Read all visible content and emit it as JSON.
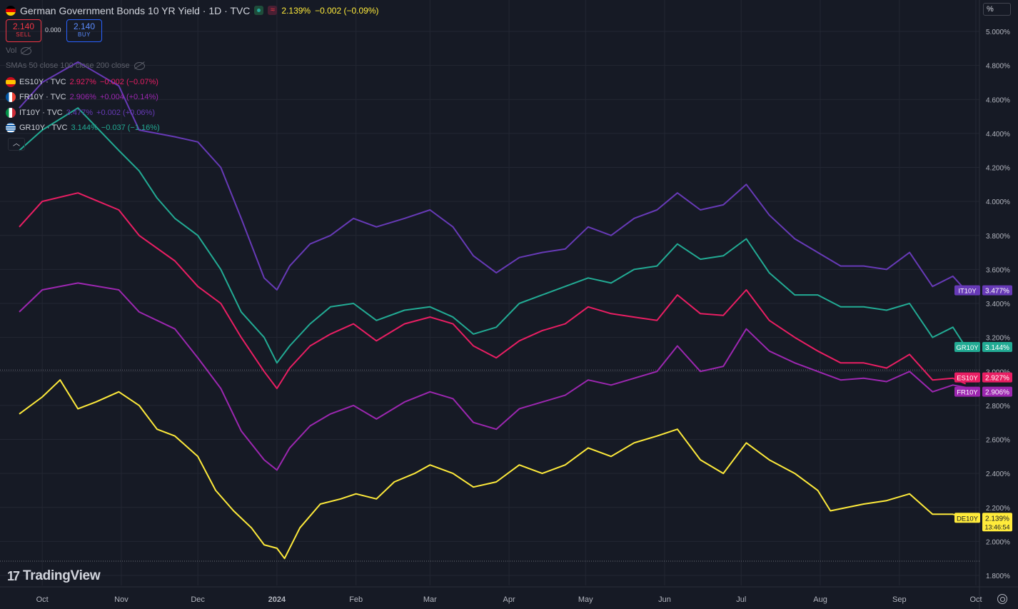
{
  "header": {
    "title": "German Government Bonds 10 YR Yield · 1D · TVC",
    "last": "2.139%",
    "change": "−0.002 (−0.09%)",
    "unit_label": "%",
    "sell_price": "2.140",
    "sell_label": "SELL",
    "spread": "0.000",
    "buy_price": "2.140",
    "buy_label": "BUY",
    "vol_label": "Vol",
    "sma_label": "SMAs 50 close 100 close 200 close",
    "collapse_icon": "chevron-up-icon"
  },
  "compare": [
    {
      "symbol": "ES10Y · TVC",
      "price": "2.927%",
      "change": "−0.002 (−0.07%)",
      "color": "#e91e63",
      "flag": "spain-flag-icon"
    },
    {
      "symbol": "FR10Y · TVC",
      "price": "2.906%",
      "change": "+0.004 (+0.14%)",
      "color": "#9c27b0",
      "flag": "france-flag-icon"
    },
    {
      "symbol": "IT10Y · TVC",
      "price": "3.477%",
      "change": "+0.002 (+0.06%)",
      "color": "#673ab7",
      "flag": "italy-flag-icon"
    },
    {
      "symbol": "GR10Y · TVC",
      "price": "3.144%",
      "change": "−0.037 (−1.16%)",
      "color": "#22ab94",
      "flag": "greece-flag-icon"
    }
  ],
  "brand": "TradingView",
  "chart_data": {
    "type": "line",
    "y_axis_ticks": [
      "5.000%",
      "4.800%",
      "4.600%",
      "4.400%",
      "4.200%",
      "4.000%",
      "3.800%",
      "3.600%",
      "3.400%",
      "3.200%",
      "3.000%",
      "2.800%",
      "2.600%",
      "2.400%",
      "2.200%",
      "2.000%",
      "1.800%"
    ],
    "y_tick_values": [
      5.0,
      4.8,
      4.6,
      4.4,
      4.2,
      4.0,
      3.8,
      3.6,
      3.4,
      3.2,
      3.0,
      2.8,
      2.6,
      2.4,
      2.2,
      2.0,
      1.8
    ],
    "ylim": [
      1.8,
      5.0
    ],
    "x_axis_ticks": [
      "Oct",
      "Nov",
      "Dec",
      "2024",
      "Feb",
      "Mar",
      "Apr",
      "May",
      "Jun",
      "Jul",
      "Aug",
      "Sep",
      "Oct"
    ],
    "x_tick_dates": [
      "2023-10-01",
      "2023-11-01",
      "2023-12-01",
      "2024-01-01",
      "2024-02-01",
      "2024-03-01",
      "2024-04-01",
      "2024-05-01",
      "2024-06-01",
      "2024-07-01",
      "2024-08-01",
      "2024-09-01",
      "2024-10-01"
    ],
    "x_range": [
      "2023-09-22",
      "2024-10-01"
    ],
    "grid": true,
    "previous_close": "3.0",
    "series": [
      {
        "name": "IT10Y",
        "color": "#673ab7",
        "last_label": "IT10Y",
        "last_value": "3.477%",
        "points": [
          [
            "2023-09-22",
            4.55
          ],
          [
            "2023-10-01",
            4.7
          ],
          [
            "2023-10-15",
            4.82
          ],
          [
            "2023-10-31",
            4.68
          ],
          [
            "2023-11-08",
            4.42
          ],
          [
            "2023-11-22",
            4.38
          ],
          [
            "2023-12-01",
            4.35
          ],
          [
            "2023-12-10",
            4.2
          ],
          [
            "2023-12-18",
            3.9
          ],
          [
            "2023-12-27",
            3.55
          ],
          [
            "2024-01-01",
            3.48
          ],
          [
            "2024-01-06",
            3.62
          ],
          [
            "2024-01-14",
            3.75
          ],
          [
            "2024-01-22",
            3.8
          ],
          [
            "2024-01-31",
            3.9
          ],
          [
            "2024-02-09",
            3.85
          ],
          [
            "2024-02-20",
            3.9
          ],
          [
            "2024-03-01",
            3.95
          ],
          [
            "2024-03-10",
            3.85
          ],
          [
            "2024-03-18",
            3.68
          ],
          [
            "2024-03-27",
            3.58
          ],
          [
            "2024-04-05",
            3.67
          ],
          [
            "2024-04-14",
            3.7
          ],
          [
            "2024-04-23",
            3.72
          ],
          [
            "2024-05-02",
            3.85
          ],
          [
            "2024-05-11",
            3.8
          ],
          [
            "2024-05-20",
            3.9
          ],
          [
            "2024-05-29",
            3.95
          ],
          [
            "2024-06-06",
            4.05
          ],
          [
            "2024-06-15",
            3.95
          ],
          [
            "2024-06-24",
            3.98
          ],
          [
            "2024-07-03",
            4.1
          ],
          [
            "2024-07-12",
            3.92
          ],
          [
            "2024-07-22",
            3.78
          ],
          [
            "2024-07-31",
            3.7
          ],
          [
            "2024-08-09",
            3.62
          ],
          [
            "2024-08-18",
            3.62
          ],
          [
            "2024-08-27",
            3.6
          ],
          [
            "2024-09-05",
            3.7
          ],
          [
            "2024-09-14",
            3.5
          ],
          [
            "2024-09-22",
            3.56
          ],
          [
            "2024-09-27",
            3.477
          ]
        ]
      },
      {
        "name": "GR10Y",
        "color": "#22ab94",
        "last_label": "GR10Y",
        "last_value": "3.144%",
        "points": [
          [
            "2023-09-22",
            4.3
          ],
          [
            "2023-10-01",
            4.42
          ],
          [
            "2023-10-15",
            4.55
          ],
          [
            "2023-10-31",
            4.3
          ],
          [
            "2023-11-08",
            4.18
          ],
          [
            "2023-11-15",
            4.02
          ],
          [
            "2023-11-22",
            3.9
          ],
          [
            "2023-12-01",
            3.8
          ],
          [
            "2023-12-10",
            3.6
          ],
          [
            "2023-12-18",
            3.35
          ],
          [
            "2023-12-27",
            3.2
          ],
          [
            "2024-01-01",
            3.05
          ],
          [
            "2024-01-06",
            3.15
          ],
          [
            "2024-01-14",
            3.28
          ],
          [
            "2024-01-22",
            3.38
          ],
          [
            "2024-01-31",
            3.4
          ],
          [
            "2024-02-09",
            3.3
          ],
          [
            "2024-02-20",
            3.36
          ],
          [
            "2024-03-01",
            3.38
          ],
          [
            "2024-03-10",
            3.32
          ],
          [
            "2024-03-18",
            3.22
          ],
          [
            "2024-03-27",
            3.26
          ],
          [
            "2024-04-05",
            3.4
          ],
          [
            "2024-04-14",
            3.45
          ],
          [
            "2024-04-23",
            3.5
          ],
          [
            "2024-05-02",
            3.55
          ],
          [
            "2024-05-11",
            3.52
          ],
          [
            "2024-05-20",
            3.6
          ],
          [
            "2024-05-29",
            3.62
          ],
          [
            "2024-06-06",
            3.75
          ],
          [
            "2024-06-15",
            3.66
          ],
          [
            "2024-06-24",
            3.68
          ],
          [
            "2024-07-03",
            3.78
          ],
          [
            "2024-07-12",
            3.58
          ],
          [
            "2024-07-22",
            3.45
          ],
          [
            "2024-07-31",
            3.45
          ],
          [
            "2024-08-09",
            3.38
          ],
          [
            "2024-08-18",
            3.38
          ],
          [
            "2024-08-27",
            3.36
          ],
          [
            "2024-09-05",
            3.4
          ],
          [
            "2024-09-14",
            3.2
          ],
          [
            "2024-09-22",
            3.26
          ],
          [
            "2024-09-27",
            3.144
          ]
        ]
      },
      {
        "name": "ES10Y",
        "color": "#e91e63",
        "last_label": "ES10Y",
        "last_value": "2.927%",
        "points": [
          [
            "2023-09-22",
            3.85
          ],
          [
            "2023-10-01",
            4.0
          ],
          [
            "2023-10-15",
            4.05
          ],
          [
            "2023-10-31",
            3.95
          ],
          [
            "2023-11-08",
            3.8
          ],
          [
            "2023-11-22",
            3.65
          ],
          [
            "2023-12-01",
            3.5
          ],
          [
            "2023-12-10",
            3.4
          ],
          [
            "2023-12-18",
            3.2
          ],
          [
            "2023-12-27",
            3.0
          ],
          [
            "2024-01-01",
            2.9
          ],
          [
            "2024-01-06",
            3.02
          ],
          [
            "2024-01-14",
            3.15
          ],
          [
            "2024-01-22",
            3.22
          ],
          [
            "2024-01-31",
            3.28
          ],
          [
            "2024-02-09",
            3.18
          ],
          [
            "2024-02-20",
            3.28
          ],
          [
            "2024-03-01",
            3.32
          ],
          [
            "2024-03-10",
            3.28
          ],
          [
            "2024-03-18",
            3.15
          ],
          [
            "2024-03-27",
            3.08
          ],
          [
            "2024-04-05",
            3.18
          ],
          [
            "2024-04-14",
            3.24
          ],
          [
            "2024-04-23",
            3.28
          ],
          [
            "2024-05-02",
            3.38
          ],
          [
            "2024-05-11",
            3.34
          ],
          [
            "2024-05-20",
            3.32
          ],
          [
            "2024-05-29",
            3.3
          ],
          [
            "2024-06-06",
            3.45
          ],
          [
            "2024-06-15",
            3.34
          ],
          [
            "2024-06-24",
            3.33
          ],
          [
            "2024-07-03",
            3.48
          ],
          [
            "2024-07-12",
            3.3
          ],
          [
            "2024-07-22",
            3.2
          ],
          [
            "2024-07-31",
            3.12
          ],
          [
            "2024-08-09",
            3.05
          ],
          [
            "2024-08-18",
            3.05
          ],
          [
            "2024-08-27",
            3.02
          ],
          [
            "2024-09-05",
            3.1
          ],
          [
            "2024-09-14",
            2.95
          ],
          [
            "2024-09-22",
            2.96
          ],
          [
            "2024-09-27",
            2.927
          ]
        ]
      },
      {
        "name": "FR10Y",
        "color": "#9c27b0",
        "last_label": "FR10Y",
        "last_value": "2.906%",
        "points": [
          [
            "2023-09-22",
            3.35
          ],
          [
            "2023-10-01",
            3.48
          ],
          [
            "2023-10-15",
            3.52
          ],
          [
            "2023-10-31",
            3.48
          ],
          [
            "2023-11-08",
            3.35
          ],
          [
            "2023-11-22",
            3.25
          ],
          [
            "2023-12-01",
            3.08
          ],
          [
            "2023-12-10",
            2.9
          ],
          [
            "2023-12-18",
            2.65
          ],
          [
            "2023-12-27",
            2.48
          ],
          [
            "2024-01-01",
            2.42
          ],
          [
            "2024-01-06",
            2.55
          ],
          [
            "2024-01-14",
            2.68
          ],
          [
            "2024-01-22",
            2.75
          ],
          [
            "2024-01-31",
            2.8
          ],
          [
            "2024-02-09",
            2.72
          ],
          [
            "2024-02-20",
            2.82
          ],
          [
            "2024-03-01",
            2.88
          ],
          [
            "2024-03-10",
            2.84
          ],
          [
            "2024-03-18",
            2.7
          ],
          [
            "2024-03-27",
            2.66
          ],
          [
            "2024-04-05",
            2.78
          ],
          [
            "2024-04-14",
            2.82
          ],
          [
            "2024-04-23",
            2.86
          ],
          [
            "2024-05-02",
            2.95
          ],
          [
            "2024-05-11",
            2.92
          ],
          [
            "2024-05-20",
            2.96
          ],
          [
            "2024-05-29",
            3.0
          ],
          [
            "2024-06-06",
            3.15
          ],
          [
            "2024-06-15",
            3.0
          ],
          [
            "2024-06-24",
            3.03
          ],
          [
            "2024-07-03",
            3.25
          ],
          [
            "2024-07-12",
            3.12
          ],
          [
            "2024-07-22",
            3.05
          ],
          [
            "2024-07-31",
            3.0
          ],
          [
            "2024-08-09",
            2.95
          ],
          [
            "2024-08-18",
            2.96
          ],
          [
            "2024-08-27",
            2.94
          ],
          [
            "2024-09-05",
            3.0
          ],
          [
            "2024-09-14",
            2.88
          ],
          [
            "2024-09-22",
            2.92
          ],
          [
            "2024-09-27",
            2.906
          ]
        ]
      },
      {
        "name": "DE10Y",
        "color": "#ffeb3b",
        "last_label": "DE10Y",
        "last_value": "2.139%",
        "countdown": "13:46:54",
        "points": [
          [
            "2023-09-22",
            2.75
          ],
          [
            "2023-10-01",
            2.85
          ],
          [
            "2023-10-08",
            2.95
          ],
          [
            "2023-10-15",
            2.78
          ],
          [
            "2023-10-22",
            2.82
          ],
          [
            "2023-10-31",
            2.88
          ],
          [
            "2023-11-08",
            2.8
          ],
          [
            "2023-11-15",
            2.66
          ],
          [
            "2023-11-22",
            2.62
          ],
          [
            "2023-12-01",
            2.5
          ],
          [
            "2023-12-08",
            2.3
          ],
          [
            "2023-12-15",
            2.18
          ],
          [
            "2023-12-22",
            2.08
          ],
          [
            "2023-12-27",
            1.98
          ],
          [
            "2024-01-01",
            1.96
          ],
          [
            "2024-01-04",
            1.9
          ],
          [
            "2024-01-10",
            2.08
          ],
          [
            "2024-01-18",
            2.22
          ],
          [
            "2024-01-26",
            2.25
          ],
          [
            "2024-02-01",
            2.28
          ],
          [
            "2024-02-09",
            2.25
          ],
          [
            "2024-02-16",
            2.35
          ],
          [
            "2024-02-24",
            2.4
          ],
          [
            "2024-03-01",
            2.45
          ],
          [
            "2024-03-10",
            2.4
          ],
          [
            "2024-03-18",
            2.32
          ],
          [
            "2024-03-27",
            2.35
          ],
          [
            "2024-04-05",
            2.45
          ],
          [
            "2024-04-14",
            2.4
          ],
          [
            "2024-04-23",
            2.45
          ],
          [
            "2024-05-02",
            2.55
          ],
          [
            "2024-05-11",
            2.5
          ],
          [
            "2024-05-20",
            2.58
          ],
          [
            "2024-05-29",
            2.62
          ],
          [
            "2024-06-06",
            2.66
          ],
          [
            "2024-06-15",
            2.48
          ],
          [
            "2024-06-24",
            2.4
          ],
          [
            "2024-07-03",
            2.58
          ],
          [
            "2024-07-12",
            2.48
          ],
          [
            "2024-07-22",
            2.4
          ],
          [
            "2024-07-31",
            2.3
          ],
          [
            "2024-08-05",
            2.18
          ],
          [
            "2024-08-18",
            2.22
          ],
          [
            "2024-08-27",
            2.24
          ],
          [
            "2024-09-05",
            2.28
          ],
          [
            "2024-09-14",
            2.16
          ],
          [
            "2024-09-22",
            2.16
          ],
          [
            "2024-09-27",
            2.139
          ]
        ]
      }
    ]
  }
}
